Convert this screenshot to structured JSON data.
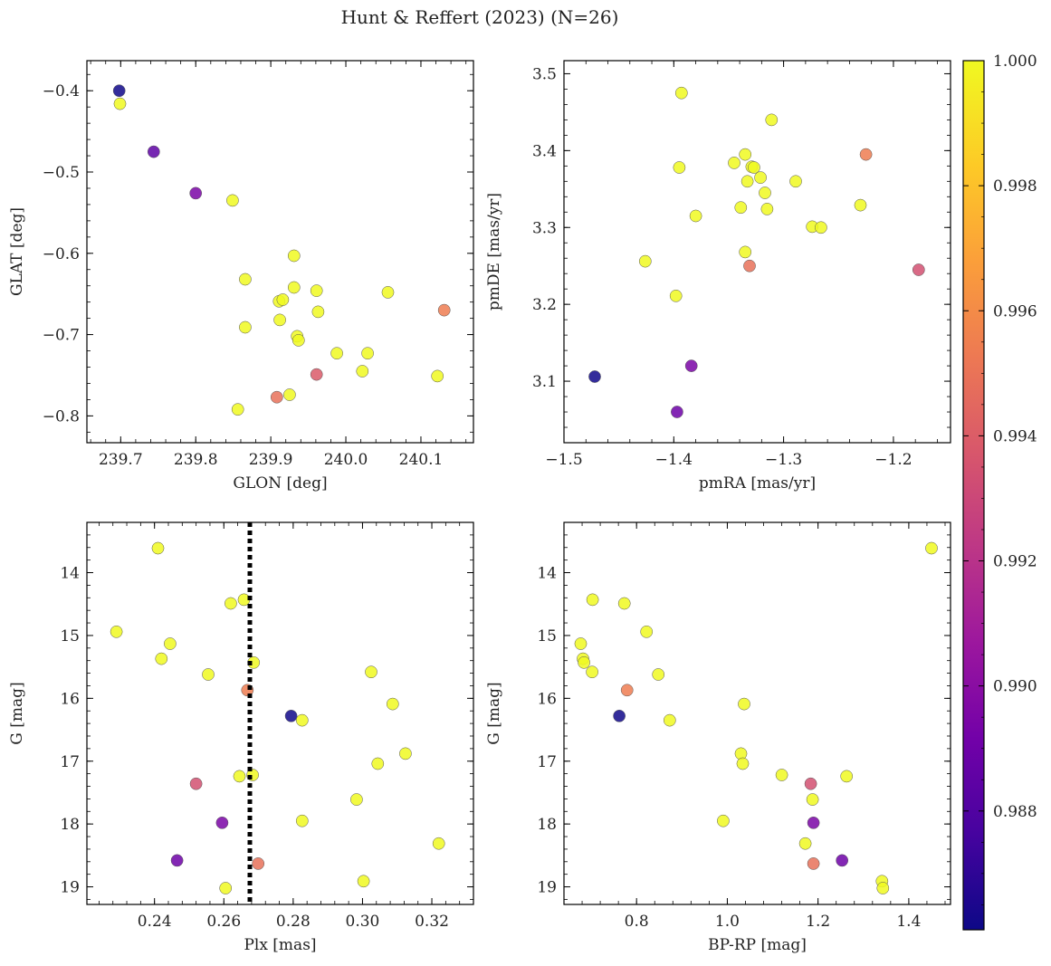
{
  "figure": {
    "title": "Hunt & Reffert (2023) (N=26)"
  },
  "colormap": {
    "name": "plasma",
    "stops": [
      "#0d0887",
      "#46039f",
      "#7201a8",
      "#9c179e",
      "#bd3786",
      "#d8576b",
      "#ed7953",
      "#fb9f3a",
      "#fdca26",
      "#f0f921"
    ],
    "range": [
      0.9861,
      1.0
    ],
    "ticks": [
      0.988,
      0.99,
      0.992,
      0.994,
      0.996,
      0.998,
      1.0
    ],
    "tick_labels": [
      "0.988",
      "0.990",
      "0.992",
      "0.994",
      "0.996",
      "0.998",
      "1.000"
    ]
  },
  "chart_data": [
    {
      "type": "scatter",
      "xlabel": "GLON [deg]",
      "ylabel": "GLAT [deg]",
      "xlim": [
        239.655,
        240.17
      ],
      "ylim": [
        -0.833,
        -0.363
      ],
      "y_inverted": false,
      "xticks": [
        239.7,
        239.8,
        239.9,
        240.0,
        240.1
      ],
      "xtick_labels": [
        "239.7",
        "239.8",
        "239.9",
        "240.0",
        "240.1"
      ],
      "yticks": [
        -0.4,
        -0.5,
        -0.6,
        -0.7,
        -0.8
      ],
      "ytick_labels": [
        "−0.4",
        "−0.5",
        "−0.6",
        "−0.7",
        "−0.8"
      ],
      "points": [
        {
          "x": 239.698,
          "y": -0.4,
          "c": 0.9862
        },
        {
          "x": 239.699,
          "y": -0.416,
          "c": 1.0
        },
        {
          "x": 239.744,
          "y": -0.475,
          "c": 0.9885
        },
        {
          "x": 239.8,
          "y": -0.526,
          "c": 0.9895
        },
        {
          "x": 239.849,
          "y": -0.535,
          "c": 1.0
        },
        {
          "x": 239.866,
          "y": -0.632,
          "c": 1.0
        },
        {
          "x": 239.866,
          "y": -0.691,
          "c": 1.0
        },
        {
          "x": 239.856,
          "y": -0.792,
          "c": 1.0
        },
        {
          "x": 239.908,
          "y": -0.777,
          "c": 0.995
        },
        {
          "x": 239.911,
          "y": -0.659,
          "c": 1.0
        },
        {
          "x": 239.916,
          "y": -0.657,
          "c": 1.0
        },
        {
          "x": 239.912,
          "y": -0.682,
          "c": 1.0
        },
        {
          "x": 239.925,
          "y": -0.774,
          "c": 1.0
        },
        {
          "x": 239.931,
          "y": -0.603,
          "c": 1.0
        },
        {
          "x": 239.931,
          "y": -0.642,
          "c": 1.0
        },
        {
          "x": 239.935,
          "y": -0.702,
          "c": 1.0
        },
        {
          "x": 239.937,
          "y": -0.707,
          "c": 1.0
        },
        {
          "x": 239.961,
          "y": -0.646,
          "c": 1.0
        },
        {
          "x": 239.963,
          "y": -0.672,
          "c": 1.0
        },
        {
          "x": 239.961,
          "y": -0.749,
          "c": 0.994
        },
        {
          "x": 239.988,
          "y": -0.723,
          "c": 1.0
        },
        {
          "x": 240.022,
          "y": -0.745,
          "c": 1.0
        },
        {
          "x": 240.029,
          "y": -0.723,
          "c": 1.0
        },
        {
          "x": 240.056,
          "y": -0.648,
          "c": 1.0
        },
        {
          "x": 240.122,
          "y": -0.751,
          "c": 1.0
        },
        {
          "x": 240.131,
          "y": -0.67,
          "c": 0.9955
        }
      ]
    },
    {
      "type": "scatter",
      "xlabel": "pmRA [mas/yr]",
      "ylabel": "pmDE [mas/yr]",
      "xlim": [
        -1.5,
        -1.148
      ],
      "ylim": [
        3.02,
        3.517
      ],
      "y_inverted": false,
      "xticks": [
        -1.5,
        -1.4,
        -1.3,
        -1.2
      ],
      "xtick_labels": [
        "−1.5",
        "−1.4",
        "−1.3",
        "−1.2"
      ],
      "yticks": [
        3.1,
        3.2,
        3.3,
        3.4,
        3.5
      ],
      "ytick_labels": [
        "3.1",
        "3.2",
        "3.3",
        "3.4",
        "3.5"
      ],
      "points": [
        {
          "x": -1.472,
          "y": 3.106,
          "c": 0.9862
        },
        {
          "x": -1.426,
          "y": 3.256,
          "c": 1.0
        },
        {
          "x": -1.398,
          "y": 3.211,
          "c": 1.0
        },
        {
          "x": -1.397,
          "y": 3.06,
          "c": 0.989
        },
        {
          "x": -1.395,
          "y": 3.378,
          "c": 1.0
        },
        {
          "x": -1.393,
          "y": 3.475,
          "c": 1.0
        },
        {
          "x": -1.384,
          "y": 3.12,
          "c": 0.9895
        },
        {
          "x": -1.38,
          "y": 3.315,
          "c": 1.0
        },
        {
          "x": -1.345,
          "y": 3.384,
          "c": 1.0
        },
        {
          "x": -1.339,
          "y": 3.326,
          "c": 1.0
        },
        {
          "x": -1.335,
          "y": 3.268,
          "c": 1.0
        },
        {
          "x": -1.335,
          "y": 3.395,
          "c": 1.0
        },
        {
          "x": -1.333,
          "y": 3.36,
          "c": 1.0
        },
        {
          "x": -1.331,
          "y": 3.25,
          "c": 0.995
        },
        {
          "x": -1.329,
          "y": 3.379,
          "c": 1.0
        },
        {
          "x": -1.327,
          "y": 3.378,
          "c": 1.0
        },
        {
          "x": -1.321,
          "y": 3.365,
          "c": 1.0
        },
        {
          "x": -1.317,
          "y": 3.345,
          "c": 1.0
        },
        {
          "x": -1.315,
          "y": 3.324,
          "c": 1.0
        },
        {
          "x": -1.311,
          "y": 3.44,
          "c": 1.0
        },
        {
          "x": -1.289,
          "y": 3.36,
          "c": 1.0
        },
        {
          "x": -1.274,
          "y": 3.301,
          "c": 1.0
        },
        {
          "x": -1.266,
          "y": 3.3,
          "c": 1.0
        },
        {
          "x": -1.23,
          "y": 3.329,
          "c": 1.0
        },
        {
          "x": -1.225,
          "y": 3.395,
          "c": 0.9955
        },
        {
          "x": -1.177,
          "y": 3.245,
          "c": 0.9935
        }
      ]
    },
    {
      "type": "scatter",
      "xlabel": "Plx [mas]",
      "ylabel": "G [mag]",
      "xlim": [
        0.2205,
        0.332
      ],
      "ylim": [
        19.28,
        13.2
      ],
      "y_inverted": true,
      "xticks": [
        0.24,
        0.26,
        0.28,
        0.3,
        0.32
      ],
      "xtick_labels": [
        "0.24",
        "0.26",
        "0.28",
        "0.30",
        "0.32"
      ],
      "yticks": [
        14,
        15,
        16,
        17,
        18,
        19
      ],
      "ytick_labels": [
        "14",
        "15",
        "16",
        "17",
        "18",
        "19"
      ],
      "vline": {
        "x": 0.2675,
        "style": "dotted",
        "color": "#000000"
      },
      "points": [
        {
          "x": 0.229,
          "y": 14.94,
          "c": 1.0
        },
        {
          "x": 0.241,
          "y": 13.61,
          "c": 1.0
        },
        {
          "x": 0.242,
          "y": 15.37,
          "c": 1.0
        },
        {
          "x": 0.2445,
          "y": 15.13,
          "c": 1.0
        },
        {
          "x": 0.2465,
          "y": 18.58,
          "c": 0.989
        },
        {
          "x": 0.252,
          "y": 17.36,
          "c": 0.9935
        },
        {
          "x": 0.2555,
          "y": 15.62,
          "c": 1.0
        },
        {
          "x": 0.2595,
          "y": 17.98,
          "c": 0.9895
        },
        {
          "x": 0.2605,
          "y": 19.02,
          "c": 1.0
        },
        {
          "x": 0.262,
          "y": 14.49,
          "c": 1.0
        },
        {
          "x": 0.2645,
          "y": 17.24,
          "c": 1.0
        },
        {
          "x": 0.2658,
          "y": 14.43,
          "c": 1.0
        },
        {
          "x": 0.2668,
          "y": 15.87,
          "c": 0.9955
        },
        {
          "x": 0.2683,
          "y": 17.22,
          "c": 1.0
        },
        {
          "x": 0.2686,
          "y": 15.43,
          "c": 1.0
        },
        {
          "x": 0.2699,
          "y": 18.63,
          "c": 0.995
        },
        {
          "x": 0.2794,
          "y": 16.28,
          "c": 0.9862
        },
        {
          "x": 0.2826,
          "y": 16.35,
          "c": 1.0
        },
        {
          "x": 0.2826,
          "y": 17.95,
          "c": 1.0
        },
        {
          "x": 0.2983,
          "y": 17.61,
          "c": 1.0
        },
        {
          "x": 0.3003,
          "y": 18.91,
          "c": 1.0
        },
        {
          "x": 0.3025,
          "y": 15.58,
          "c": 1.0
        },
        {
          "x": 0.3044,
          "y": 17.04,
          "c": 1.0
        },
        {
          "x": 0.3087,
          "y": 16.09,
          "c": 1.0
        },
        {
          "x": 0.3124,
          "y": 16.88,
          "c": 1.0
        },
        {
          "x": 0.322,
          "y": 18.31,
          "c": 1.0
        }
      ]
    },
    {
      "type": "scatter",
      "xlabel": "BP-RP [mag]",
      "ylabel": "G [mag]",
      "xlim": [
        0.64,
        1.492
      ],
      "ylim": [
        19.28,
        13.2
      ],
      "y_inverted": true,
      "xticks": [
        0.8,
        1.0,
        1.2,
        1.4
      ],
      "xtick_labels": [
        "0.8",
        "1.0",
        "1.2",
        "1.4"
      ],
      "yticks": [
        14,
        15,
        16,
        17,
        18,
        19
      ],
      "ytick_labels": [
        "14",
        "15",
        "16",
        "17",
        "18",
        "19"
      ],
      "points": [
        {
          "x": 0.677,
          "y": 15.13,
          "c": 1.0
        },
        {
          "x": 0.682,
          "y": 15.37,
          "c": 1.0
        },
        {
          "x": 0.684,
          "y": 15.43,
          "c": 1.0
        },
        {
          "x": 0.702,
          "y": 15.58,
          "c": 1.0
        },
        {
          "x": 0.703,
          "y": 14.43,
          "c": 1.0
        },
        {
          "x": 0.762,
          "y": 16.28,
          "c": 0.9862
        },
        {
          "x": 0.773,
          "y": 14.49,
          "c": 1.0
        },
        {
          "x": 0.779,
          "y": 15.87,
          "c": 0.9955
        },
        {
          "x": 0.822,
          "y": 14.94,
          "c": 1.0
        },
        {
          "x": 0.848,
          "y": 15.62,
          "c": 1.0
        },
        {
          "x": 0.873,
          "y": 16.35,
          "c": 1.0
        },
        {
          "x": 0.991,
          "y": 17.95,
          "c": 1.0
        },
        {
          "x": 1.03,
          "y": 16.88,
          "c": 1.0
        },
        {
          "x": 1.034,
          "y": 17.04,
          "c": 1.0
        },
        {
          "x": 1.037,
          "y": 16.09,
          "c": 1.0
        },
        {
          "x": 1.12,
          "y": 17.22,
          "c": 1.0
        },
        {
          "x": 1.172,
          "y": 18.31,
          "c": 1.0
        },
        {
          "x": 1.184,
          "y": 17.36,
          "c": 0.9935
        },
        {
          "x": 1.188,
          "y": 17.61,
          "c": 1.0
        },
        {
          "x": 1.19,
          "y": 17.98,
          "c": 0.9895
        },
        {
          "x": 1.19,
          "y": 18.63,
          "c": 0.995
        },
        {
          "x": 1.253,
          "y": 18.58,
          "c": 0.989
        },
        {
          "x": 1.263,
          "y": 17.24,
          "c": 1.0
        },
        {
          "x": 1.341,
          "y": 18.91,
          "c": 1.0
        },
        {
          "x": 1.343,
          "y": 19.02,
          "c": 1.0
        },
        {
          "x": 1.45,
          "y": 13.61,
          "c": 1.0
        }
      ]
    }
  ]
}
